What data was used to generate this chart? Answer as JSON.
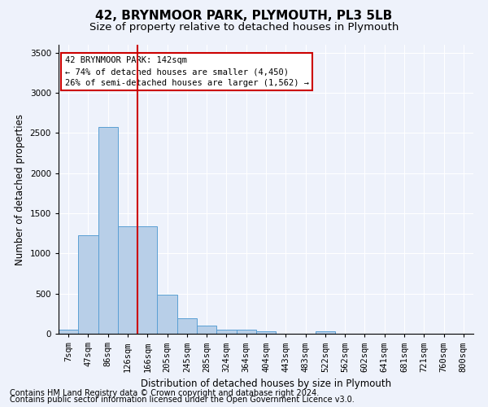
{
  "title": "42, BRYNMOOR PARK, PLYMOUTH, PL3 5LB",
  "subtitle": "Size of property relative to detached houses in Plymouth",
  "xlabel": "Distribution of detached houses by size in Plymouth",
  "ylabel": "Number of detached properties",
  "categories": [
    "7sqm",
    "47sqm",
    "86sqm",
    "126sqm",
    "166sqm",
    "205sqm",
    "245sqm",
    "285sqm",
    "324sqm",
    "364sqm",
    "404sqm",
    "443sqm",
    "483sqm",
    "522sqm",
    "562sqm",
    "602sqm",
    "641sqm",
    "681sqm",
    "721sqm",
    "760sqm",
    "800sqm"
  ],
  "values": [
    55,
    1225,
    2580,
    1340,
    1340,
    490,
    190,
    100,
    55,
    50,
    30,
    0,
    0,
    30,
    0,
    0,
    0,
    0,
    0,
    0,
    0
  ],
  "bar_color": "#b8cfe8",
  "bar_edge_color": "#5a9fd4",
  "property_line_x": 3.5,
  "annotation_text": "42 BRYNMOOR PARK: 142sqm\n← 74% of detached houses are smaller (4,450)\n26% of semi-detached houses are larger (1,562) →",
  "annotation_box_color": "#ffffff",
  "annotation_box_edge_color": "#cc0000",
  "property_line_color": "#cc0000",
  "ylim": [
    0,
    3600
  ],
  "yticks": [
    0,
    500,
    1000,
    1500,
    2000,
    2500,
    3000,
    3500
  ],
  "footer1": "Contains HM Land Registry data © Crown copyright and database right 2024.",
  "footer2": "Contains public sector information licensed under the Open Government Licence v3.0.",
  "background_color": "#eef2fb",
  "grid_color": "#ffffff",
  "title_fontsize": 11,
  "subtitle_fontsize": 9.5,
  "axis_label_fontsize": 8.5,
  "tick_fontsize": 7.5,
  "footer_fontsize": 7
}
